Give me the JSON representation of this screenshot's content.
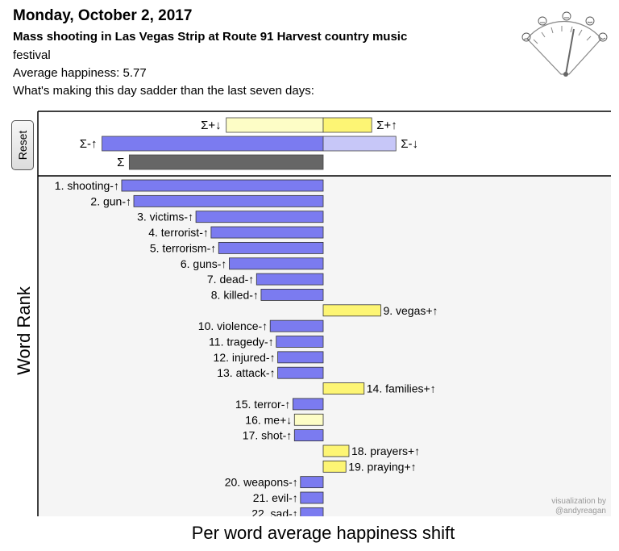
{
  "header": {
    "date": "Monday, October 2, 2017",
    "event_line1": "Mass shooting in Las Vegas Strip at Route 91 Harvest country music",
    "event_line2": "festival",
    "average_happiness": "Average happiness: 5.77",
    "question": "What's making this day sadder than the last seven days:"
  },
  "controls": {
    "reset_label": "Reset"
  },
  "chart_data": {
    "type": "bar",
    "orientation": "horizontal",
    "ylabel": "Word Rank",
    "xlabel": "Per word average happiness shift",
    "credit_line1": "visualization by",
    "credit_line2": "@andyreagan",
    "summary": [
      {
        "label": "Σ+↓",
        "value": -0.64,
        "color": "#fdfdc6"
      },
      {
        "label": "Σ+↑",
        "value": 0.32,
        "color": "#fdf574"
      },
      {
        "label": "Σ-↑",
        "value": -1.46,
        "color": "#7b7bf0"
      },
      {
        "label": "Σ-↓",
        "value": 0.48,
        "color": "#c7c7f8"
      },
      {
        "label": "Σ",
        "value": -1.28,
        "color": "#666666"
      }
    ],
    "words": [
      {
        "rank": 1,
        "word": "shooting",
        "type": "-↑",
        "value": -1.33
      },
      {
        "rank": 2,
        "word": "gun",
        "type": "-↑",
        "value": -1.25
      },
      {
        "rank": 3,
        "word": "victims",
        "type": "-↑",
        "value": -0.84
      },
      {
        "rank": 4,
        "word": "terrorist",
        "type": "-↑",
        "value": -0.74
      },
      {
        "rank": 5,
        "word": "terrorism",
        "type": "-↑",
        "value": -0.69
      },
      {
        "rank": 6,
        "word": "guns",
        "type": "-↑",
        "value": -0.62
      },
      {
        "rank": 7,
        "word": "dead",
        "type": "-↑",
        "value": -0.44
      },
      {
        "rank": 8,
        "word": "killed",
        "type": "-↑",
        "value": -0.41
      },
      {
        "rank": 9,
        "word": "vegas",
        "type": "+↑",
        "value": 0.38
      },
      {
        "rank": 10,
        "word": "violence",
        "type": "-↑",
        "value": -0.35
      },
      {
        "rank": 11,
        "word": "tragedy",
        "type": "-↑",
        "value": -0.31
      },
      {
        "rank": 12,
        "word": "injured",
        "type": "-↑",
        "value": -0.3
      },
      {
        "rank": 13,
        "word": "attack",
        "type": "-↑",
        "value": -0.3
      },
      {
        "rank": 14,
        "word": "families",
        "type": "+↑",
        "value": 0.27
      },
      {
        "rank": 15,
        "word": "terror",
        "type": "-↑",
        "value": -0.2
      },
      {
        "rank": 16,
        "word": "me",
        "type": "+↓",
        "value": -0.19
      },
      {
        "rank": 17,
        "word": "shot",
        "type": "-↑",
        "value": -0.19
      },
      {
        "rank": 18,
        "word": "prayers",
        "type": "+↑",
        "value": 0.17
      },
      {
        "rank": 19,
        "word": "praying",
        "type": "+↑",
        "value": 0.15
      },
      {
        "rank": 20,
        "word": "weapons",
        "type": "-↑",
        "value": -0.15
      },
      {
        "rank": 21,
        "word": "evil",
        "type": "-↑",
        "value": -0.15
      },
      {
        "rank": 22,
        "word": "sad",
        "type": "-↑",
        "value": -0.15
      }
    ],
    "colors": {
      "neg_up": "#7b7bf0",
      "neg_down": "#c7c7f8",
      "pos_up": "#fdf574",
      "pos_down": "#fdfdc6",
      "total": "#666666"
    }
  }
}
